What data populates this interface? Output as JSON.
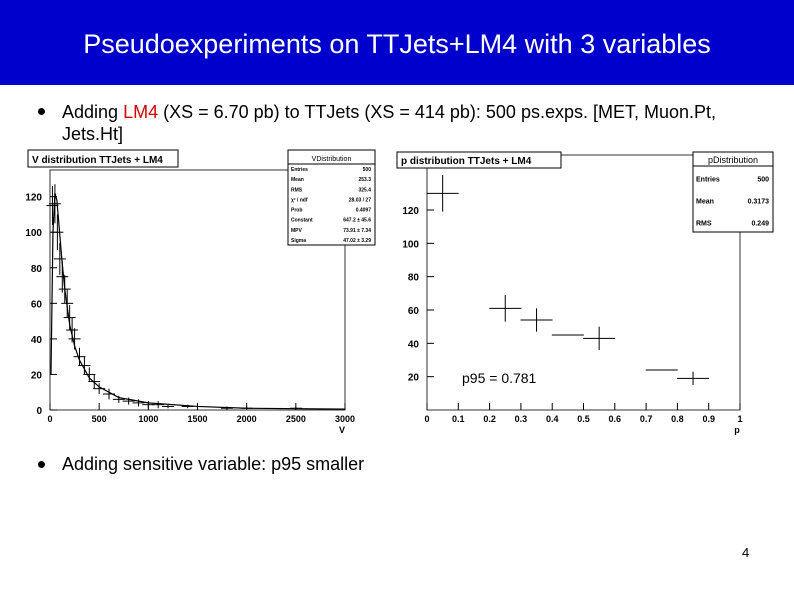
{
  "slide": {
    "title": "Pseudoexperiments on TTJets+LM4 with 3 variables",
    "bullets": [
      {
        "parts": [
          "Adding ",
          "LM4",
          " (XS = 6.70 pb) to TTJets (XS = 414 pb): 500 ps.exps. [MET, Muon.Pt, Jets.Ht]"
        ]
      },
      {
        "parts": [
          "Adding sensitive variable: p95 smaller"
        ]
      }
    ],
    "page_number": "4"
  },
  "chart_data": [
    {
      "type": "histogram-errors",
      "title": "V distribution TTJets + LM4",
      "x_label": "V",
      "stats": {
        "title": "VDistribution",
        "rows": [
          [
            "Entries",
            "500"
          ],
          [
            "Mean",
            "253.3"
          ],
          [
            "RMS",
            "325.4"
          ],
          [
            "χ² / ndf",
            "28.03 / 27"
          ],
          [
            "Prob",
            "0.4097"
          ],
          [
            "Constant",
            "647.2 ± 45.6"
          ],
          [
            "MPV",
            "73.91 ± 7.34"
          ],
          [
            "Sigma",
            "47.02 ± 3.29"
          ]
        ]
      },
      "xlim": [
        0,
        3000
      ],
      "xticks": [
        0,
        500,
        1000,
        1500,
        2000,
        2500,
        3000
      ],
      "ylim": [
        0,
        135
      ],
      "yticks": [
        0,
        20,
        40,
        60,
        80,
        100,
        120
      ],
      "points": {
        "x": [
          25,
          50,
          75,
          100,
          125,
          150,
          175,
          200,
          225,
          250,
          300,
          350,
          400,
          450,
          500,
          600,
          700,
          800,
          900,
          1000,
          1100,
          1200,
          1400,
          1800,
          2000,
          2500
        ],
        "values": [
          115,
          116,
          100,
          85,
          75,
          68,
          60,
          52,
          45,
          40,
          30,
          25,
          20,
          16,
          12,
          9,
          6,
          5,
          4,
          3,
          3,
          2,
          2,
          1,
          1,
          1
        ],
        "errors": [
          11,
          11,
          10,
          9,
          9,
          8,
          8,
          7,
          7,
          6,
          5,
          5,
          4,
          4,
          3,
          3,
          2,
          2,
          2,
          2,
          2,
          1,
          1,
          1,
          1,
          1
        ]
      },
      "fit": {
        "x": [
          10,
          30,
          50,
          70,
          90,
          120,
          150,
          200,
          250,
          300,
          400,
          500,
          700,
          1000,
          1500,
          2000,
          3000
        ],
        "values": [
          20,
          100,
          122,
          118,
          105,
          85,
          68,
          48,
          36,
          28,
          18,
          13,
          7,
          4,
          2,
          1,
          0.5
        ]
      }
    },
    {
      "type": "histogram-errors",
      "title": "p distribution TTJets + LM4",
      "x_label": "p",
      "stats": {
        "title": "pDistribution",
        "rows": [
          [
            "Entries",
            "500"
          ],
          [
            "Mean",
            "0.3173"
          ],
          [
            "RMS",
            "0.249"
          ]
        ]
      },
      "annotation": "p95 = 0.781",
      "xlim": [
        0,
        1
      ],
      "xticks": [
        0,
        0.1,
        0.2,
        0.3,
        0.4,
        0.5,
        0.6,
        0.7,
        0.8,
        0.9,
        1
      ],
      "ylim": [
        0,
        153
      ],
      "yticks": [
        20,
        40,
        60,
        80,
        100,
        120
      ],
      "points": {
        "x": [
          0.05,
          0.25,
          0.35,
          0.45,
          0.55,
          0.75,
          0.85
        ],
        "values": [
          130,
          61,
          54,
          45,
          43,
          24,
          19
        ],
        "errors": [
          11,
          8,
          7,
          0,
          7,
          0,
          4
        ]
      }
    }
  ]
}
